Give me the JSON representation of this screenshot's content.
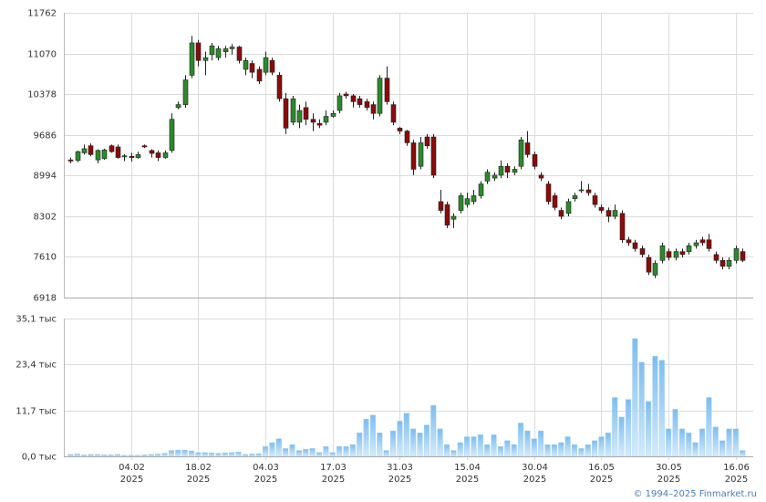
{
  "chart_data": {
    "type": "candlestick",
    "open": [
      9260,
      9250,
      9380,
      9500,
      9260,
      9280,
      9500,
      9480,
      9310,
      9320,
      9300,
      9500,
      9420,
      9380,
      9300,
      9420,
      10150,
      10200,
      10700,
      11250,
      10950,
      11050,
      11000,
      11100,
      11150,
      11180,
      10800,
      10900,
      10800,
      10750,
      10950,
      10700,
      10300,
      9900,
      9900,
      10150,
      9950,
      9880,
      9900,
      10000,
      10100,
      10380,
      10350,
      10300,
      10250,
      10200,
      10050,
      10650,
      10200,
      9800,
      9750,
      9550,
      9150,
      9650,
      9650,
      8550,
      8500,
      8250,
      8400,
      8500,
      8550,
      8650,
      8900,
      8950,
      9000,
      9150,
      9050,
      9150,
      9550,
      9350,
      9000,
      8850,
      8650,
      8400,
      8350,
      8600,
      8750,
      8750,
      8650,
      8450,
      8400,
      8300,
      8350,
      7900,
      7850,
      7750,
      7600,
      7300,
      7550,
      7700,
      7600,
      7700,
      7700,
      7800,
      7900,
      7900,
      7650,
      7550,
      7450,
      7550,
      7700
    ],
    "high": [
      9300,
      9420,
      9520,
      9540,
      9440,
      9450,
      9520,
      9520,
      9360,
      9380,
      9400,
      9520,
      9440,
      9420,
      9420,
      10050,
      10250,
      10700,
      11370,
      11300,
      11100,
      11250,
      11200,
      11200,
      11230,
      11200,
      11000,
      10950,
      10850,
      11100,
      11000,
      10750,
      10400,
      10350,
      10200,
      10250,
      10050,
      9950,
      10100,
      10100,
      10400,
      10420,
      10380,
      10350,
      10300,
      10250,
      10700,
      10850,
      10250,
      9820,
      9770,
      9600,
      9650,
      9700,
      9700,
      8750,
      8550,
      8350,
      8700,
      8700,
      8750,
      8900,
      9100,
      9050,
      9250,
      9200,
      9150,
      9650,
      9750,
      9400,
      9050,
      8900,
      8700,
      8450,
      8600,
      8700,
      8900,
      8850,
      8700,
      8500,
      8450,
      8500,
      8400,
      7950,
      7900,
      7800,
      7650,
      7550,
      7850,
      7750,
      7750,
      7750,
      7850,
      7900,
      7950,
      8000,
      7700,
      7600,
      7600,
      7800,
      7750
    ],
    "low": [
      9200,
      9220,
      9350,
      9320,
      9200,
      9260,
      9380,
      9280,
      9240,
      9230,
      9280,
      9460,
      9300,
      9240,
      9280,
      9380,
      10120,
      10150,
      10650,
      10850,
      10700,
      10950,
      10950,
      11000,
      11050,
      10900,
      10700,
      10650,
      10550,
      10700,
      10700,
      10250,
      9700,
      9850,
      9800,
      9850,
      9750,
      9800,
      9850,
      9980,
      10050,
      10300,
      10150,
      10150,
      10100,
      9950,
      10000,
      10200,
      9850,
      9700,
      9500,
      9000,
      9100,
      9450,
      8950,
      8350,
      8100,
      8100,
      8350,
      8450,
      8500,
      8600,
      8850,
      8900,
      8950,
      8950,
      9000,
      9100,
      9300,
      9100,
      8900,
      8500,
      8400,
      8250,
      8300,
      8550,
      8700,
      8650,
      8450,
      8350,
      8200,
      8250,
      7850,
      7800,
      7700,
      7600,
      7300,
      7250,
      7500,
      7550,
      7550,
      7600,
      7650,
      7750,
      7800,
      7700,
      7500,
      7400,
      7400,
      7500,
      7520
    ],
    "close": [
      9240,
      9400,
      9450,
      9350,
      9420,
      9430,
      9400,
      9300,
      9330,
      9300,
      9350,
      9480,
      9370,
      9300,
      9380,
      9950,
      10200,
      10620,
      11250,
      10950,
      11000,
      11200,
      11150,
      11150,
      11180,
      10950,
      10950,
      10750,
      10600,
      11000,
      10750,
      10300,
      9800,
      10300,
      10100,
      9950,
      9900,
      9850,
      10000,
      10050,
      10350,
      10350,
      10250,
      10200,
      10150,
      10050,
      10650,
      10250,
      9900,
      9750,
      9550,
      9100,
      9550,
      9500,
      9000,
      8400,
      8150,
      8300,
      8650,
      8600,
      8650,
      8850,
      9050,
      9000,
      9150,
      9050,
      9100,
      9600,
      9350,
      9150,
      8950,
      8550,
      8450,
      8300,
      8550,
      8650,
      8750,
      8700,
      8500,
      8400,
      8300,
      8400,
      7900,
      7850,
      7750,
      7650,
      7350,
      7500,
      7800,
      7600,
      7700,
      7650,
      7800,
      7850,
      7850,
      7750,
      7550,
      7450,
      7550,
      7750,
      7550
    ],
    "up_color": "#2a8a2a",
    "down_color": "#8b0a0a",
    "ylim": [
      6918,
      11762
    ],
    "yticks": [
      6918,
      7610,
      8302,
      8994,
      9686,
      10378,
      11070,
      11762
    ],
    "xlim": [
      -1,
      101.6
    ],
    "xticks": [
      {
        "value": 9,
        "label": [
          "04.02",
          "2025"
        ]
      },
      {
        "value": 19,
        "label": [
          "18.02",
          "2025"
        ]
      },
      {
        "value": 29,
        "label": [
          "04.03",
          "2025"
        ]
      },
      {
        "value": 39,
        "label": [
          "17.03",
          "2025"
        ]
      },
      {
        "value": 49,
        "label": [
          "31.03",
          "2025"
        ]
      },
      {
        "value": 59,
        "label": [
          "15.04",
          "2025"
        ]
      },
      {
        "value": 69,
        "label": [
          "30.04",
          "2025"
        ]
      },
      {
        "value": 79,
        "label": [
          "16.05",
          "2025"
        ]
      },
      {
        "value": 89,
        "label": [
          "30.05",
          "2025"
        ]
      },
      {
        "value": 99,
        "label": [
          "16.06",
          "2025"
        ]
      }
    ],
    "grid": true,
    "volume": {
      "color": "#9ccff5",
      "values": [
        0.5,
        0.6,
        0.4,
        0.5,
        0.5,
        0.4,
        0.4,
        0.5,
        0.3,
        0.3,
        0.3,
        0.4,
        0.5,
        0.6,
        0.8,
        1.5,
        1.6,
        1.6,
        1.4,
        1.0,
        1.0,
        0.9,
        0.8,
        0.9,
        1.0,
        1.1,
        0.5,
        0.6,
        0.7,
        2.5,
        3.5,
        4.5,
        2.0,
        3.0,
        1.5,
        1.8,
        2.0,
        1.0,
        2.5,
        1.0,
        2.5,
        2.5,
        3.0,
        6.0,
        9.5,
        10.5,
        6.0,
        1.5,
        6.5,
        9.0,
        11.0,
        7.0,
        6.0,
        8.0,
        13.0,
        7.0,
        3.0,
        1.5,
        3.5,
        5.0,
        5.0,
        5.5,
        3.0,
        5.5,
        2.5,
        4.0,
        3.0,
        8.5,
        6.5,
        4.5,
        6.5,
        3.0,
        3.0,
        3.5,
        5.0,
        3.0,
        2.0,
        3.0,
        4.0,
        5.0,
        6.0,
        15.0,
        10.0,
        14.5,
        30.0,
        24.0,
        14.0,
        25.5,
        24.5,
        7.0,
        12.0,
        7.0,
        6.0,
        3.5,
        7.0,
        15.0,
        7.5,
        4.0,
        7.0,
        7.0,
        1.5
      ],
      "ylim": [
        0,
        35.1
      ],
      "yticks": [
        {
          "value": 0,
          "label": "0,0 тыс"
        },
        {
          "value": 11.7,
          "label": "11,7 тыс"
        },
        {
          "value": 23.4,
          "label": "23,4 тыс"
        },
        {
          "value": 35.1,
          "label": "35,1 тыс"
        }
      ]
    },
    "footer": "© 1994–2025 Finmarket.ru"
  }
}
